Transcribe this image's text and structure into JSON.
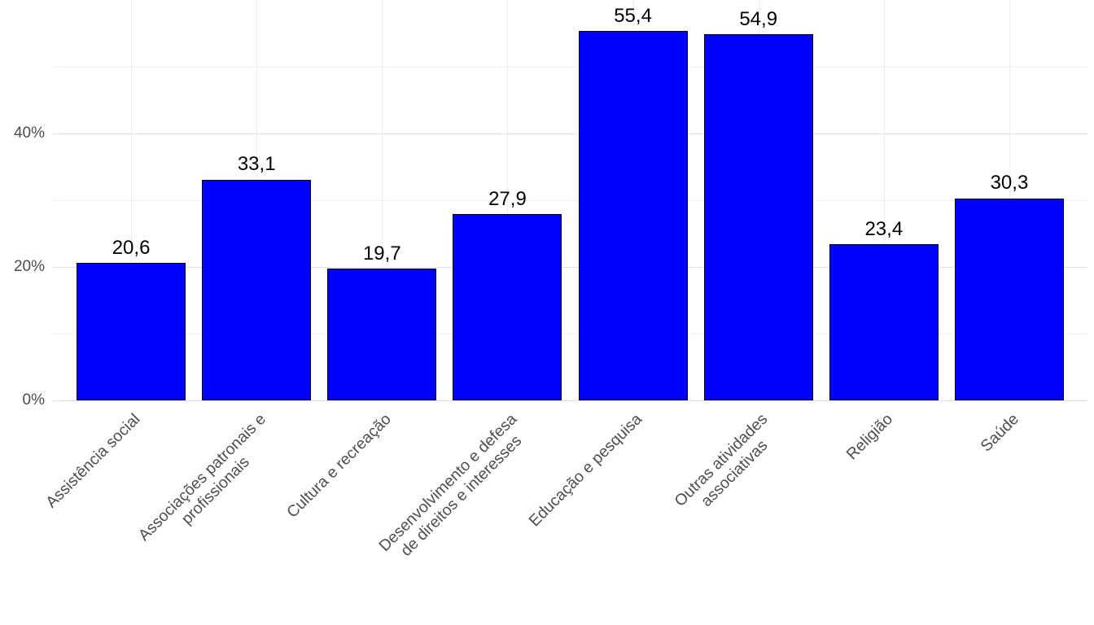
{
  "chart_data": {
    "type": "bar",
    "title": "",
    "xlabel": "",
    "ylabel": "",
    "categories": [
      "Assistência social",
      "Associações patronais e\nprofissionais",
      "Cultura e recreação",
      "Desenvolvimento e defesa\nde direitos e interesses",
      "Educação e pesquisa",
      "Outras atividades\nassociativas",
      "Religião",
      "Saúde"
    ],
    "values": [
      20.6,
      33.1,
      19.7,
      27.9,
      55.4,
      54.9,
      23.4,
      30.3
    ],
    "value_labels": [
      "20,6",
      "33,1",
      "19,7",
      "27,9",
      "55,4",
      "54,9",
      "23,4",
      "30,3"
    ],
    "ylim": [
      0,
      60
    ],
    "y_major_ticks": [
      0,
      20,
      40
    ],
    "y_tick_labels": [
      "0%",
      "20%",
      "40%"
    ],
    "y_minor_ticks": [
      10,
      30,
      50
    ],
    "grid": true,
    "legend": "none",
    "bar_color": "#0000FF",
    "bar_border_color": "#000000"
  }
}
